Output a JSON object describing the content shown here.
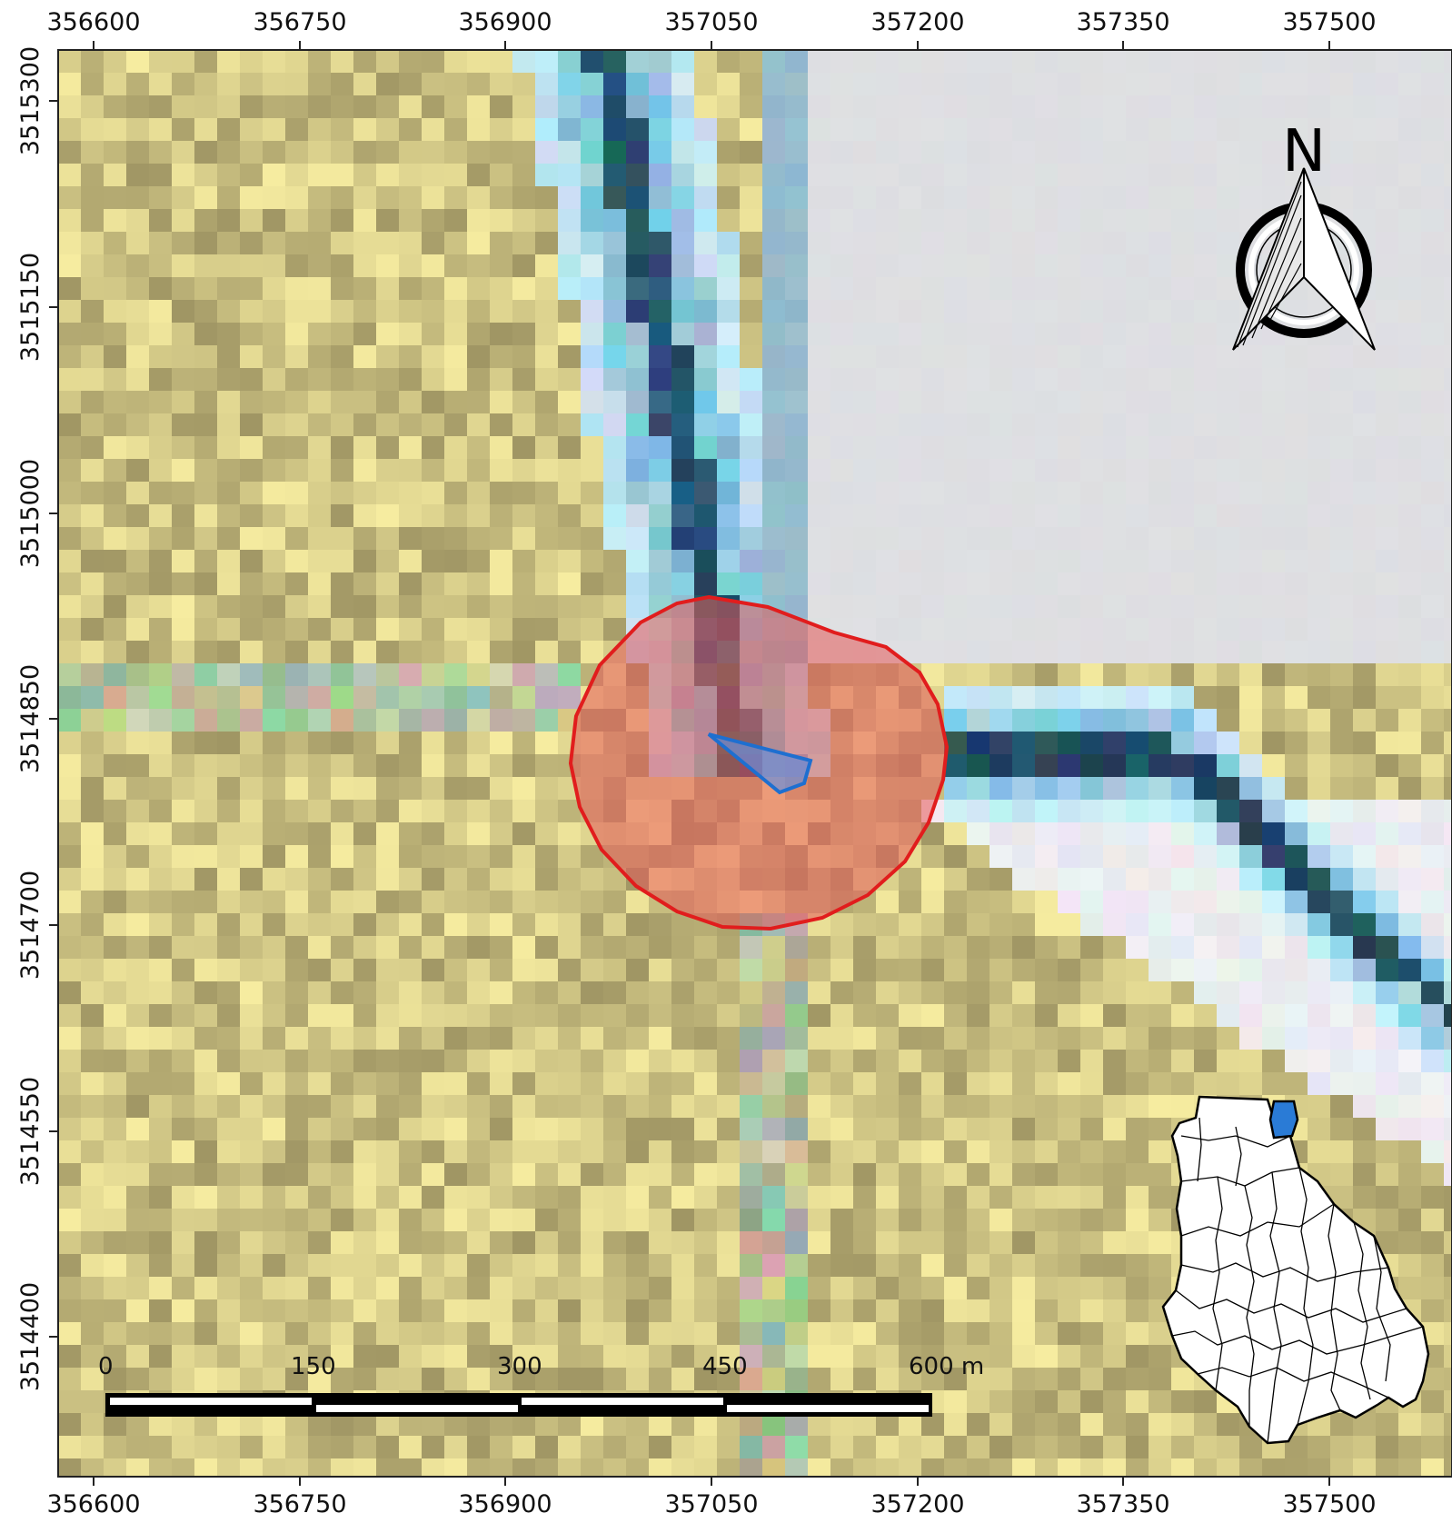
{
  "map": {
    "x_ticks": [
      "356600",
      "356750",
      "356900",
      "357050",
      "357200",
      "357350",
      "357500"
    ],
    "y_ticks": [
      "3515300",
      "3515150",
      "3515000",
      "3514850",
      "3514700",
      "3514550",
      "3514400"
    ],
    "north_label": "N",
    "scale_bar": {
      "labels": [
        "0",
        "150",
        "300",
        "450",
        "600 m"
      ]
    },
    "colors": {
      "buffer_stroke": "#e11d1d",
      "buffer_fill": "#e35a5a",
      "site_stroke": "#1e6fd0",
      "site_fill": "#6b8fd8",
      "inset_highlight": "#2a7bd6",
      "river_dark": "#0f3a4f",
      "river_light": "#bfe9f7",
      "land_light": "#f4e9a3",
      "land_dark": "#9b9067",
      "urban_gray": "#dcdde0"
    }
  }
}
